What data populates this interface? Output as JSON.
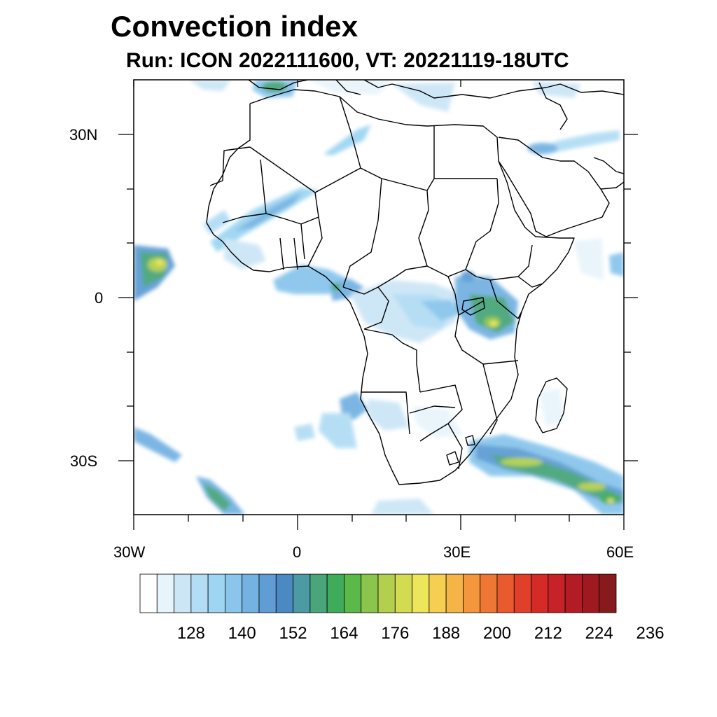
{
  "title": "Convection index",
  "subtitle": "Run: ICON 2022111600,  VT: 20221119-18UTC",
  "map": {
    "lon_range": [
      -30,
      60
    ],
    "lat_range": [
      -40,
      40
    ],
    "lon_labels": [
      "30W",
      "0",
      "30E",
      "60E"
    ],
    "lat_labels": [
      "30N",
      "0",
      "30S"
    ]
  },
  "colorbar": {
    "colors": [
      "#ffffff",
      "#e8f4fb",
      "#cce6f6",
      "#b2ddf4",
      "#9dd5f2",
      "#8ac6ec",
      "#74b2e2",
      "#5f9dd4",
      "#4b89c3",
      "#4c9aa3",
      "#4aa67a",
      "#3eac5a",
      "#5bb949",
      "#8cc54c",
      "#b2d04e",
      "#d3db50",
      "#ede55a",
      "#f6cf52",
      "#f5b447",
      "#f4963c",
      "#ef7734",
      "#e95a2e",
      "#e0402a",
      "#d52b28",
      "#c62228",
      "#b31c24",
      "#9e1a20",
      "#861a1c"
    ],
    "labels": [
      "128",
      "140",
      "152",
      "164",
      "176",
      "188",
      "200",
      "212",
      "224",
      "236"
    ]
  }
}
